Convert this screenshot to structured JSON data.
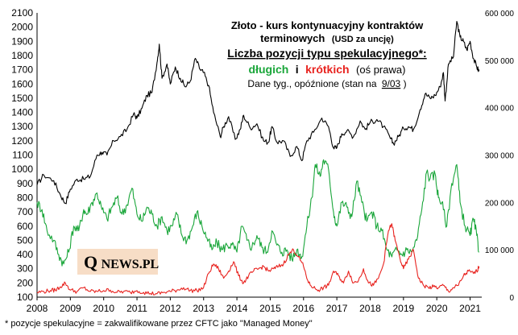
{
  "chart_data": {
    "type": "line",
    "title": {
      "line1": "Złoto - kurs kontynuacyjny kontraktów",
      "line2_main": "terminowych",
      "line2_unit": "(USD za uncję)",
      "line3": "Liczba pozycji typu spekulacyjnego*:",
      "line4_long": "długich",
      "line4_and": "i",
      "line4_short": "krótkich",
      "line4_axis": "(oś prawa)",
      "line5_a": "Dane tyg.,  opóźnione (stan na",
      "line5_date": "9/03",
      "line5_b": ")"
    },
    "x_ticks": [
      "2008",
      "2009",
      "2010",
      "2011",
      "2012",
      "2013",
      "2014",
      "2015",
      "2016",
      "2017",
      "2018",
      "2019",
      "2020",
      "2021"
    ],
    "y_left_ticks": [
      "100",
      "200",
      "300",
      "400",
      "500",
      "600",
      "700",
      "800",
      "900",
      "1000",
      "1100",
      "1200",
      "1300",
      "1400",
      "1500",
      "1600",
      "1700",
      "1800",
      "1900",
      "2000",
      "2100"
    ],
    "y_right_ticks": [
      "0",
      "100 000",
      "200 000",
      "300 000",
      "400 000",
      "500 000",
      "600 000"
    ],
    "ylim_left": [
      100,
      2100
    ],
    "ylim_right": [
      0,
      600000
    ],
    "xlim": [
      2008.0,
      2021.35
    ],
    "series": [
      {
        "name": "Złoto - kurs kontynuacyjny kontraktów terminowych",
        "axis": "left",
        "color": "#000000",
        "points": [
          [
            2008.0,
            890
          ],
          [
            2008.2,
            960
          ],
          [
            2008.5,
            920
          ],
          [
            2008.7,
            820
          ],
          [
            2008.85,
            760
          ],
          [
            2009.0,
            860
          ],
          [
            2009.2,
            930
          ],
          [
            2009.4,
            930
          ],
          [
            2009.6,
            950
          ],
          [
            2009.8,
            1100
          ],
          [
            2009.95,
            1120
          ],
          [
            2010.1,
            1100
          ],
          [
            2010.3,
            1200
          ],
          [
            2010.5,
            1230
          ],
          [
            2010.7,
            1280
          ],
          [
            2010.9,
            1390
          ],
          [
            2011.0,
            1360
          ],
          [
            2011.15,
            1430
          ],
          [
            2011.3,
            1520
          ],
          [
            2011.45,
            1540
          ],
          [
            2011.6,
            1750
          ],
          [
            2011.67,
            1880
          ],
          [
            2011.75,
            1640
          ],
          [
            2011.9,
            1740
          ],
          [
            2012.0,
            1600
          ],
          [
            2012.15,
            1720
          ],
          [
            2012.3,
            1640
          ],
          [
            2012.45,
            1580
          ],
          [
            2012.6,
            1620
          ],
          [
            2012.75,
            1780
          ],
          [
            2012.9,
            1700
          ],
          [
            2013.0,
            1680
          ],
          [
            2013.15,
            1590
          ],
          [
            2013.3,
            1400
          ],
          [
            2013.5,
            1230
          ],
          [
            2013.6,
            1300
          ],
          [
            2013.75,
            1370
          ],
          [
            2013.95,
            1210
          ],
          [
            2014.1,
            1280
          ],
          [
            2014.2,
            1380
          ],
          [
            2014.4,
            1290
          ],
          [
            2014.6,
            1320
          ],
          [
            2014.8,
            1200
          ],
          [
            2014.95,
            1190
          ],
          [
            2015.05,
            1300
          ],
          [
            2015.2,
            1190
          ],
          [
            2015.4,
            1200
          ],
          [
            2015.6,
            1090
          ],
          [
            2015.8,
            1160
          ],
          [
            2015.95,
            1060
          ],
          [
            2016.1,
            1200
          ],
          [
            2016.3,
            1260
          ],
          [
            2016.55,
            1360
          ],
          [
            2016.75,
            1300
          ],
          [
            2016.9,
            1150
          ],
          [
            2017.0,
            1150
          ],
          [
            2017.15,
            1250
          ],
          [
            2017.3,
            1270
          ],
          [
            2017.5,
            1230
          ],
          [
            2017.7,
            1340
          ],
          [
            2017.85,
            1280
          ],
          [
            2018.0,
            1330
          ],
          [
            2018.2,
            1350
          ],
          [
            2018.4,
            1300
          ],
          [
            2018.6,
            1220
          ],
          [
            2018.7,
            1180
          ],
          [
            2018.85,
            1230
          ],
          [
            2019.0,
            1290
          ],
          [
            2019.15,
            1300
          ],
          [
            2019.3,
            1280
          ],
          [
            2019.5,
            1420
          ],
          [
            2019.65,
            1530
          ],
          [
            2019.8,
            1500
          ],
          [
            2019.95,
            1520
          ],
          [
            2020.1,
            1580
          ],
          [
            2020.2,
            1680
          ],
          [
            2020.25,
            1480
          ],
          [
            2020.35,
            1740
          ],
          [
            2020.5,
            1790
          ],
          [
            2020.6,
            2040
          ],
          [
            2020.7,
            1930
          ],
          [
            2020.8,
            1900
          ],
          [
            2020.9,
            1840
          ],
          [
            2021.0,
            1900
          ],
          [
            2021.1,
            1780
          ],
          [
            2021.2,
            1720
          ],
          [
            2021.27,
            1690
          ]
        ]
      },
      {
        "name": "długich",
        "axis": "right",
        "color": "#1aa63a",
        "points": [
          [
            2008.0,
            200000
          ],
          [
            2008.15,
            185000
          ],
          [
            2008.3,
            140000
          ],
          [
            2008.5,
            120000
          ],
          [
            2008.65,
            90000
          ],
          [
            2008.8,
            70000
          ],
          [
            2008.95,
            95000
          ],
          [
            2009.1,
            150000
          ],
          [
            2009.25,
            140000
          ],
          [
            2009.4,
            185000
          ],
          [
            2009.5,
            175000
          ],
          [
            2009.65,
            200000
          ],
          [
            2009.8,
            220000
          ],
          [
            2009.95,
            185000
          ],
          [
            2010.1,
            165000
          ],
          [
            2010.25,
            190000
          ],
          [
            2010.4,
            210000
          ],
          [
            2010.55,
            175000
          ],
          [
            2010.7,
            195000
          ],
          [
            2010.85,
            230000
          ],
          [
            2011.0,
            175000
          ],
          [
            2011.15,
            160000
          ],
          [
            2011.3,
            190000
          ],
          [
            2011.45,
            175000
          ],
          [
            2011.6,
            150000
          ],
          [
            2011.75,
            170000
          ],
          [
            2011.9,
            140000
          ],
          [
            2012.05,
            150000
          ],
          [
            2012.2,
            175000
          ],
          [
            2012.35,
            130000
          ],
          [
            2012.5,
            120000
          ],
          [
            2012.65,
            145000
          ],
          [
            2012.8,
            180000
          ],
          [
            2012.95,
            150000
          ],
          [
            2013.1,
            125000
          ],
          [
            2013.25,
            100000
          ],
          [
            2013.4,
            115000
          ],
          [
            2013.55,
            100000
          ],
          [
            2013.7,
            110000
          ],
          [
            2013.85,
            110000
          ],
          [
            2014.0,
            95000
          ],
          [
            2014.15,
            150000
          ],
          [
            2014.3,
            120000
          ],
          [
            2014.45,
            105000
          ],
          [
            2014.6,
            130000
          ],
          [
            2014.75,
            105000
          ],
          [
            2014.9,
            95000
          ],
          [
            2015.05,
            140000
          ],
          [
            2015.2,
            110000
          ],
          [
            2015.35,
            95000
          ],
          [
            2015.5,
            100000
          ],
          [
            2015.65,
            80000
          ],
          [
            2015.8,
            100000
          ],
          [
            2015.95,
            85000
          ],
          [
            2016.1,
            150000
          ],
          [
            2016.25,
            210000
          ],
          [
            2016.35,
            280000
          ],
          [
            2016.5,
            255000
          ],
          [
            2016.6,
            290000
          ],
          [
            2016.75,
            270000
          ],
          [
            2016.9,
            180000
          ],
          [
            2017.0,
            150000
          ],
          [
            2017.15,
            200000
          ],
          [
            2017.3,
            190000
          ],
          [
            2017.45,
            170000
          ],
          [
            2017.6,
            245000
          ],
          [
            2017.75,
            200000
          ],
          [
            2017.9,
            160000
          ],
          [
            2018.05,
            180000
          ],
          [
            2018.2,
            150000
          ],
          [
            2018.35,
            140000
          ],
          [
            2018.5,
            100000
          ],
          [
            2018.65,
            85000
          ],
          [
            2018.8,
            100000
          ],
          [
            2018.95,
            90000
          ],
          [
            2019.1,
            100000
          ],
          [
            2019.25,
            95000
          ],
          [
            2019.4,
            120000
          ],
          [
            2019.55,
            185000
          ],
          [
            2019.7,
            265000
          ],
          [
            2019.8,
            250000
          ],
          [
            2019.95,
            260000
          ],
          [
            2020.05,
            210000
          ],
          [
            2020.15,
            200000
          ],
          [
            2020.3,
            150000
          ],
          [
            2020.45,
            240000
          ],
          [
            2020.6,
            280000
          ],
          [
            2020.7,
            200000
          ],
          [
            2020.85,
            150000
          ],
          [
            2021.0,
            130000
          ],
          [
            2021.1,
            165000
          ],
          [
            2021.2,
            130000
          ],
          [
            2021.27,
            95000
          ]
        ]
      },
      {
        "name": "krótkich",
        "axis": "right",
        "color": "#e8231f",
        "points": [
          [
            2008.0,
            10000
          ],
          [
            2008.2,
            12000
          ],
          [
            2008.4,
            14000
          ],
          [
            2008.55,
            15000
          ],
          [
            2008.7,
            22000
          ],
          [
            2008.85,
            30000
          ],
          [
            2009.0,
            15000
          ],
          [
            2009.2,
            12000
          ],
          [
            2009.4,
            20000
          ],
          [
            2009.6,
            12000
          ],
          [
            2009.8,
            12000
          ],
          [
            2010.0,
            14000
          ],
          [
            2010.2,
            15000
          ],
          [
            2010.4,
            10000
          ],
          [
            2010.6,
            12000
          ],
          [
            2010.8,
            10000
          ],
          [
            2011.0,
            14000
          ],
          [
            2011.2,
            10000
          ],
          [
            2011.4,
            8000
          ],
          [
            2011.6,
            7000
          ],
          [
            2011.8,
            10000
          ],
          [
            2012.0,
            12000
          ],
          [
            2012.2,
            15000
          ],
          [
            2012.4,
            20000
          ],
          [
            2012.6,
            14000
          ],
          [
            2012.8,
            14000
          ],
          [
            2013.0,
            20000
          ],
          [
            2013.15,
            50000
          ],
          [
            2013.3,
            70000
          ],
          [
            2013.45,
            60000
          ],
          [
            2013.6,
            40000
          ],
          [
            2013.75,
            55000
          ],
          [
            2013.9,
            75000
          ],
          [
            2014.05,
            45000
          ],
          [
            2014.2,
            30000
          ],
          [
            2014.35,
            45000
          ],
          [
            2014.5,
            55000
          ],
          [
            2014.65,
            60000
          ],
          [
            2014.8,
            65000
          ],
          [
            2014.95,
            55000
          ],
          [
            2015.1,
            60000
          ],
          [
            2015.25,
            65000
          ],
          [
            2015.4,
            70000
          ],
          [
            2015.55,
            90000
          ],
          [
            2015.7,
            100000
          ],
          [
            2015.85,
            85000
          ],
          [
            2016.0,
            65000
          ],
          [
            2016.15,
            30000
          ],
          [
            2016.3,
            20000
          ],
          [
            2016.45,
            15000
          ],
          [
            2016.6,
            20000
          ],
          [
            2016.75,
            25000
          ],
          [
            2016.9,
            55000
          ],
          [
            2017.05,
            45000
          ],
          [
            2017.2,
            30000
          ],
          [
            2017.35,
            55000
          ],
          [
            2017.5,
            30000
          ],
          [
            2017.65,
            35000
          ],
          [
            2017.8,
            60000
          ],
          [
            2017.95,
            30000
          ],
          [
            2018.1,
            25000
          ],
          [
            2018.25,
            40000
          ],
          [
            2018.4,
            70000
          ],
          [
            2018.55,
            140000
          ],
          [
            2018.65,
            155000
          ],
          [
            2018.75,
            120000
          ],
          [
            2018.9,
            80000
          ],
          [
            2019.0,
            60000
          ],
          [
            2019.15,
            80000
          ],
          [
            2019.3,
            100000
          ],
          [
            2019.45,
            40000
          ],
          [
            2019.6,
            25000
          ],
          [
            2019.75,
            20000
          ],
          [
            2019.9,
            22000
          ],
          [
            2020.05,
            20000
          ],
          [
            2020.2,
            25000
          ],
          [
            2020.35,
            12000
          ],
          [
            2020.5,
            20000
          ],
          [
            2020.65,
            25000
          ],
          [
            2020.8,
            45000
          ],
          [
            2020.95,
            55000
          ],
          [
            2021.1,
            50000
          ],
          [
            2021.2,
            55000
          ],
          [
            2021.27,
            65000
          ]
        ]
      }
    ]
  },
  "logo": {
    "q": "Q",
    "rest": "NEWS.PL"
  },
  "footnote": "* pozycje spekulacyjne = zakwalifikowane przez CFTC jako \"Managed Money\"",
  "colors": {
    "long": "#1aa63a",
    "short": "#e8231f",
    "price": "#000000",
    "logo_bg": "#f7ddc6"
  }
}
